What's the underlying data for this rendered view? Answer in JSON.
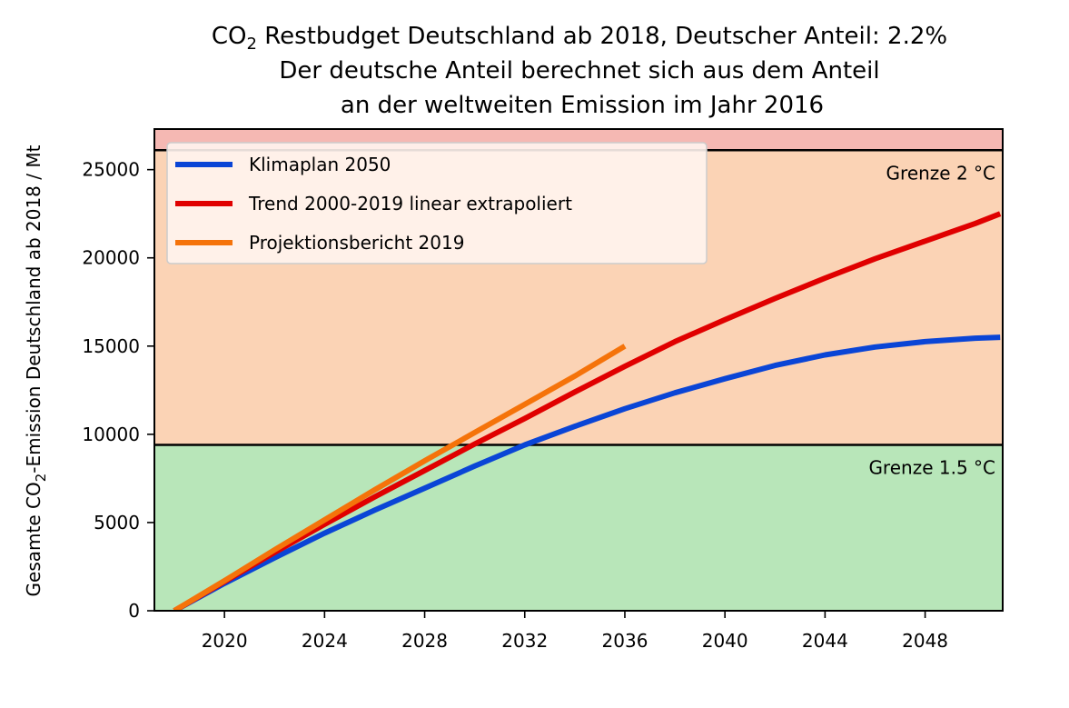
{
  "chart_data": {
    "type": "line",
    "title": {
      "line1_prefix": "CO",
      "line1_sub": "2",
      "line1_suffix": " Restbudget Deutschland ab 2018, Deutscher Anteil: 2.2%",
      "line2": "Der deutsche Anteil berechnet sich aus dem Anteil",
      "line3": "an der weltweiten Emission im Jahr 2016"
    },
    "ylabel": {
      "prefix": "Gesamte CO",
      "sub": "2",
      "suffix": "-Emission Deutschland ab 2018 / Mt"
    },
    "xlim": [
      2017.2,
      2051.1
    ],
    "ylim": [
      0,
      27300
    ],
    "x_ticks": [
      2020,
      2024,
      2028,
      2032,
      2036,
      2040,
      2044,
      2048
    ],
    "y_ticks": [
      0,
      5000,
      10000,
      15000,
      20000,
      25000
    ],
    "grid": false,
    "legend_position": "upper left",
    "bands": [
      {
        "from": 0,
        "to": 9400,
        "color": "#b8e6b9"
      },
      {
        "from": 9400,
        "to": 26100,
        "color": "#fbd3b5"
      },
      {
        "from": 26100,
        "to": 27300,
        "color": "#f5b8b3"
      }
    ],
    "thresholds": [
      {
        "value": 9400,
        "label": "Grenze 1.5 °C"
      },
      {
        "value": 26100,
        "label": "Grenze 2 °C"
      }
    ],
    "series": [
      {
        "name": "Klimaplan 2050",
        "color": "#0a45d6",
        "x": [
          2018,
          2020,
          2022,
          2024,
          2026,
          2028,
          2030,
          2032,
          2034,
          2036,
          2038,
          2040,
          2042,
          2044,
          2046,
          2048,
          2050,
          2051
        ],
        "y": [
          0,
          1550,
          3000,
          4400,
          5700,
          6950,
          8200,
          9400,
          10450,
          11450,
          12350,
          13150,
          13900,
          14500,
          14950,
          15250,
          15450,
          15500
        ]
      },
      {
        "name": "Trend 2000-2019 linear extrapoliert",
        "color": "#e00000",
        "x": [
          2018,
          2020,
          2022,
          2024,
          2026,
          2028,
          2030,
          2032,
          2034,
          2036,
          2038,
          2040,
          2042,
          2044,
          2046,
          2048,
          2050,
          2051
        ],
        "y": [
          0,
          1650,
          3300,
          4900,
          6450,
          7950,
          9450,
          10900,
          12400,
          13850,
          15250,
          16500,
          17700,
          18850,
          19950,
          20950,
          21950,
          22500
        ]
      },
      {
        "name": "Projektionsbericht 2019",
        "color": "#f5730a",
        "x": [
          2018,
          2020,
          2022,
          2024,
          2026,
          2028,
          2030,
          2032,
          2034,
          2036
        ],
        "y": [
          0,
          1700,
          3450,
          5150,
          6850,
          8500,
          10100,
          11700,
          13300,
          15000
        ]
      }
    ]
  }
}
